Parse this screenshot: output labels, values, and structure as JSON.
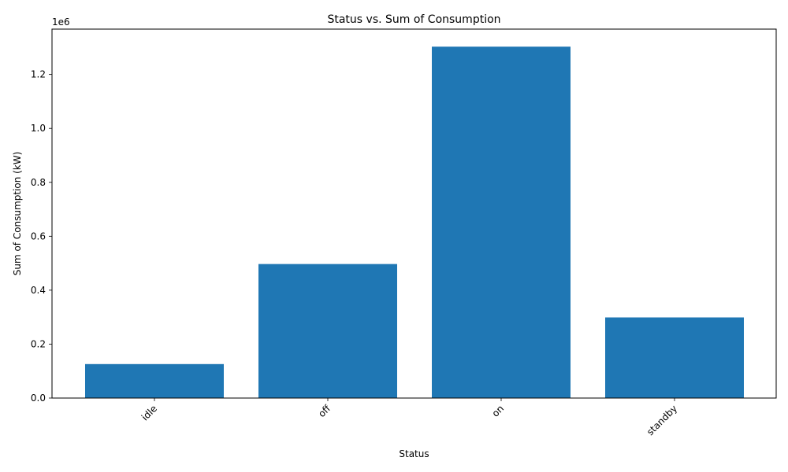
{
  "chart_data": {
    "type": "bar",
    "title": "Status vs. Sum of Consumption",
    "xlabel": "Status",
    "ylabel": "Sum of Consumption (kW)",
    "y_offset_text": "1e6",
    "categories": [
      "idle",
      "off",
      "on",
      "standby"
    ],
    "values": [
      126000,
      497000,
      1303000,
      299000
    ],
    "ylim": [
      0,
      1368150
    ],
    "yticks": [
      0,
      200000,
      400000,
      600000,
      800000,
      1000000,
      1200000
    ],
    "ytick_labels": [
      "0.0",
      "0.2",
      "0.4",
      "0.6",
      "0.8",
      "1.0",
      "1.2"
    ],
    "xtick_rotation": 45,
    "bar_color": "#1f77b4",
    "grid": false,
    "legend": "none"
  }
}
